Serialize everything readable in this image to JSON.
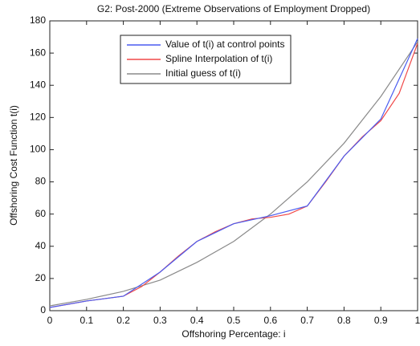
{
  "chart_data": {
    "type": "line",
    "title": "G2: Post-2000 (Extreme Observations of Employment Dropped)",
    "x_label": "Offshoring Percentage: i",
    "y_label": "Offshoring Cost Function t(i)",
    "xlim": [
      0,
      1
    ],
    "ylim": [
      0,
      180
    ],
    "xticks": [
      0,
      0.1,
      0.2,
      0.3,
      0.4,
      0.5,
      0.6,
      0.7,
      0.8,
      0.9,
      1
    ],
    "yticks": [
      0,
      20,
      40,
      60,
      80,
      100,
      120,
      140,
      160,
      180
    ],
    "grid": false,
    "legend": "upper center",
    "series": [
      {
        "name": "Value of t(i) at control points",
        "color": "#4a5cf0",
        "x": [
          0,
          0.1,
          0.2,
          0.3,
          0.4,
          0.5,
          0.6,
          0.7,
          0.8,
          0.9,
          1
        ],
        "values": [
          2,
          6,
          9,
          24,
          43,
          54,
          59,
          65,
          96,
          119,
          169
        ]
      },
      {
        "name": "Spline Interpolation of t(i)",
        "color": "#f04848",
        "x": [
          0,
          0.05,
          0.1,
          0.15,
          0.2,
          0.25,
          0.3,
          0.35,
          0.4,
          0.45,
          0.5,
          0.55,
          0.6,
          0.65,
          0.7,
          0.75,
          0.8,
          0.85,
          0.9,
          0.95,
          1
        ],
        "values": [
          2,
          4,
          6,
          7.5,
          9,
          15,
          24,
          34,
          43,
          49,
          54,
          57,
          58,
          60,
          65,
          80,
          96,
          108,
          118,
          135,
          166
        ]
      },
      {
        "name": "Initial guess of t(i)",
        "color": "#8a8a8a",
        "x": [
          0,
          0.1,
          0.2,
          0.3,
          0.4,
          0.5,
          0.6,
          0.7,
          0.8,
          0.9,
          1
        ],
        "values": [
          3,
          7,
          12,
          19,
          30,
          43,
          60,
          80,
          104,
          133,
          167
        ]
      }
    ]
  }
}
